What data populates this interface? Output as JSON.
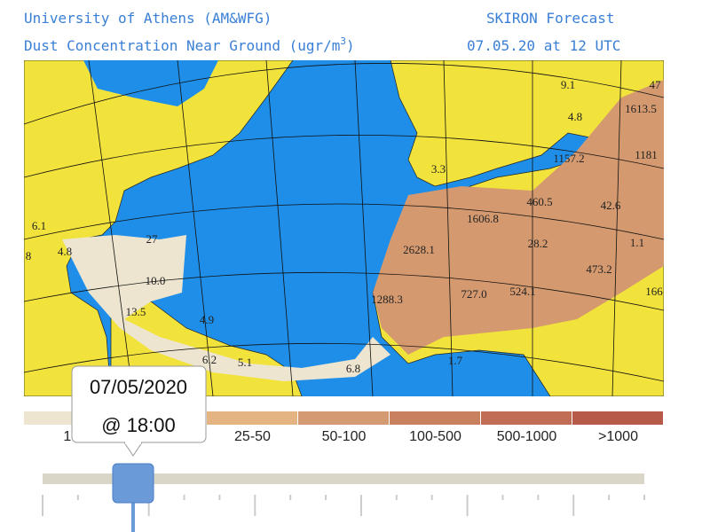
{
  "header": {
    "left_line1": "University of Athens (AM&WFG)",
    "right_line1": "SKIRON Forecast",
    "left_line2": "Dust Concentration Near Ground (ugr/m",
    "unit_exponent": "3",
    "left_line2_end": ")",
    "right_line2": "07.05.20 at 12 UTC"
  },
  "map": {
    "labels": [
      "9.1",
      "47",
      "1613.5",
      "4.8",
      "1157.2",
      "1181",
      "3.3",
      "460.5",
      "42.6",
      "1606.8",
      "28.2",
      "2628.1",
      "1.1",
      "473.2",
      "6.1",
      "4.8",
      "27",
      "10.0",
      "1288.3",
      "727.0",
      "524.1",
      "166",
      "13.5",
      "4.9",
      "6.2",
      "5.1",
      "6.8",
      "1.7",
      "8"
    ]
  },
  "legend": {
    "items": [
      {
        "label": "1-",
        "color": "#ede5d0"
      },
      {
        "label": "",
        "color": "#ebd4ac"
      },
      {
        "label": "25-50",
        "color": "#e4b583"
      },
      {
        "label": "50-100",
        "color": "#d49b72"
      },
      {
        "label": "100-500",
        "color": "#c9805f"
      },
      {
        "label": "500-1000",
        "color": "#c16c55"
      },
      {
        "label": ">1000",
        "color": "#b85a4a"
      }
    ]
  },
  "slider": {
    "tooltip_date": "07/05/2020",
    "tooltip_time": "@ 18:00"
  }
}
